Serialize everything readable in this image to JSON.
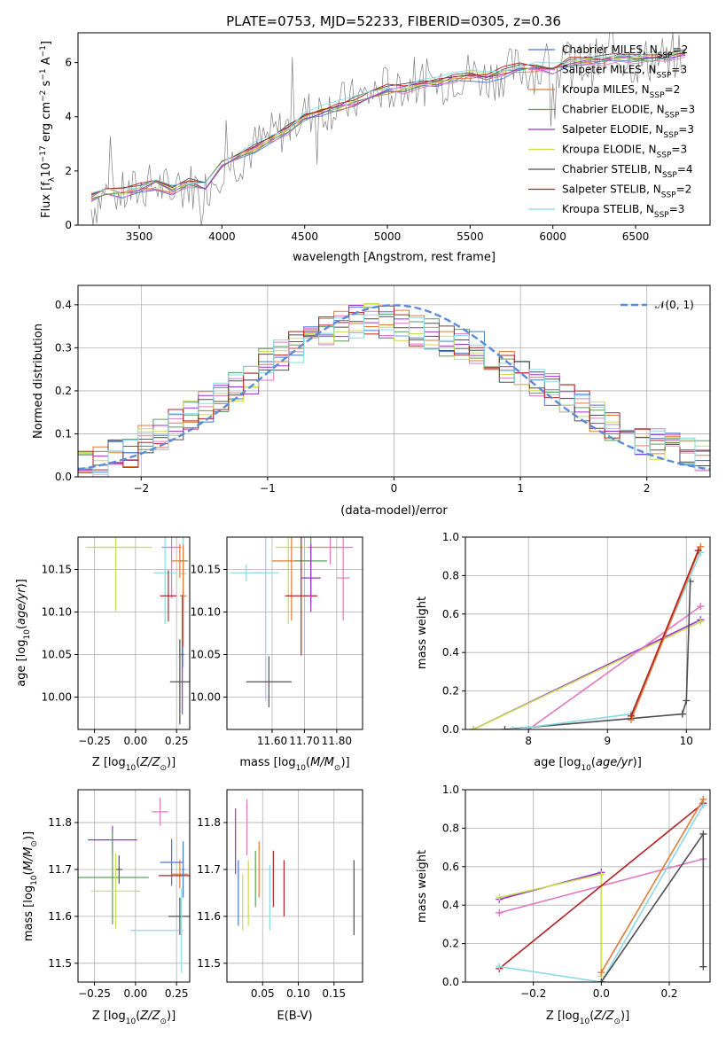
{
  "figure": {
    "title": "PLATE=0753, MJD=52233, FIBERID=0305, z=0.36"
  },
  "chart_data": [
    {
      "id": "spectrum",
      "type": "line",
      "xlabel": "wavelength [Angstrom, rest frame]",
      "ylabel": "Flux [f_λ 10^-17 erg cm^-2 s^-1 A^-1]",
      "xlim": [
        3130,
        6950
      ],
      "ylim": [
        0,
        7.1
      ],
      "xticks": [
        3500,
        4000,
        4500,
        5000,
        5500,
        6000,
        6500
      ],
      "yticks": [
        0,
        2,
        4,
        6
      ],
      "grid": false,
      "legend": "upper right",
      "data_series": {
        "name": "",
        "color": "#808080",
        "x": [
          3210,
          3300,
          3400,
          3500,
          3600,
          3700,
          3800,
          3900,
          4000,
          4100,
          4200,
          4300,
          4400,
          4500,
          4600,
          4700,
          4800,
          4900,
          5000,
          5100,
          5200,
          5300,
          5400,
          5500,
          5600,
          5700,
          5800,
          5900,
          6000,
          6100,
          6200,
          6300,
          6400,
          6500,
          6600,
          6700,
          6800
        ],
        "y": [
          0.6,
          1.2,
          1.1,
          1.3,
          1.5,
          1.2,
          1.5,
          1.3,
          2.2,
          2.4,
          2.9,
          3.3,
          3.6,
          4.1,
          4.3,
          4.4,
          4.6,
          4.8,
          5.1,
          5.0,
          5.3,
          5.2,
          5.5,
          5.6,
          5.4,
          5.6,
          5.8,
          5.7,
          5.6,
          6.0,
          5.9,
          6.1,
          6.2,
          6.0,
          6.1,
          6.2,
          6.3
        ]
      },
      "model_x": [
        3210,
        3300,
        3400,
        3500,
        3600,
        3700,
        3800,
        3900,
        4000,
        4100,
        4200,
        4300,
        4400,
        4500,
        4600,
        4700,
        4800,
        4900,
        5000,
        5100,
        5200,
        5300,
        5400,
        5500,
        5600,
        5700,
        5800,
        5900,
        6000,
        6100,
        6200,
        6300,
        6400,
        6500,
        6600,
        6700,
        6800
      ],
      "model_y": [
        1.0,
        1.25,
        1.2,
        1.35,
        1.5,
        1.35,
        1.55,
        1.45,
        2.25,
        2.45,
        2.85,
        3.25,
        3.55,
        4.0,
        4.2,
        4.35,
        4.55,
        4.8,
        5.0,
        5.05,
        5.2,
        5.25,
        5.45,
        5.55,
        5.5,
        5.65,
        5.8,
        5.8,
        5.75,
        6.0,
        6.0,
        6.1,
        6.2,
        6.15,
        6.2,
        6.25,
        6.35
      ],
      "series": [
        {
          "name": "Chabrier MILES, N_SSP=2",
          "label_main": "Chabrier MILES, N",
          "label_sub": "SSP",
          "label_tail": "=2",
          "color": "#4878d0"
        },
        {
          "name": "Salpeter MILES, N_SSP=3",
          "label_main": "Salpeter MILES, N",
          "label_sub": "SSP",
          "label_tail": "=3",
          "color": "#e377c2"
        },
        {
          "name": "Kroupa MILES, N_SSP=2",
          "label_main": "Kroupa MILES, N",
          "label_sub": "SSP",
          "label_tail": "=2",
          "color": "#e07b39"
        },
        {
          "name": "Chabrier ELODIE, N_SSP=3",
          "label_main": "Chabrier ELODIE, N",
          "label_sub": "SSP",
          "label_tail": "=3",
          "color": "#5a9e5a"
        },
        {
          "name": "Salpeter ELODIE, N_SSP=3",
          "label_main": "Salpeter ELODIE, N",
          "label_sub": "SSP",
          "label_tail": "=3",
          "color": "#9b30d0"
        },
        {
          "name": "Kroupa ELODIE, N_SSP=3",
          "label_main": "Kroupa ELODIE, N",
          "label_sub": "SSP",
          "label_tail": "=3",
          "color": "#c8dc50"
        },
        {
          "name": "Chabrier STELIB, N_SSP=4",
          "label_main": "Chabrier STELIB, N",
          "label_sub": "SSP",
          "label_tail": "=4",
          "color": "#505050"
        },
        {
          "name": "Salpeter STELIB, N_SSP=2",
          "label_main": "Salpeter STELIB, N",
          "label_sub": "SSP",
          "label_tail": "=2",
          "color": "#b22222"
        },
        {
          "name": "Kroupa STELIB, N_SSP=3",
          "label_main": "Kroupa STELIB, N",
          "label_sub": "SSP",
          "label_tail": "=3",
          "color": "#8ad8e8"
        }
      ]
    },
    {
      "id": "residuals",
      "type": "line",
      "xlabel": "(data-model)/error",
      "ylabel": "Normed distribution",
      "xlim": [
        -2.5,
        2.5
      ],
      "ylim": [
        0,
        0.445
      ],
      "xticks": [
        -2,
        -1,
        0,
        1,
        2
      ],
      "yticks": [
        0.0,
        0.1,
        0.2,
        0.3,
        0.4
      ],
      "grid": true,
      "legend": "upper right",
      "normal_label": "N(0,1)",
      "normal_color": "#5b8bd8",
      "base_hist": [
        0.03,
        0.04,
        0.05,
        0.06,
        0.08,
        0.1,
        0.12,
        0.14,
        0.16,
        0.19,
        0.21,
        0.23,
        0.26,
        0.28,
        0.3,
        0.32,
        0.34,
        0.35,
        0.36,
        0.37,
        0.36,
        0.35,
        0.34,
        0.33,
        0.32,
        0.31,
        0.3,
        0.28,
        0.26,
        0.24,
        0.22,
        0.2,
        0.18,
        0.16,
        0.14,
        0.12,
        0.1,
        0.09,
        0.08,
        0.07,
        0.06,
        0.05
      ]
    },
    {
      "id": "age-z",
      "type": "scatter",
      "xlabel": "Z [log10(Z/Z_sun)]",
      "ylabel": "age [log10(age/yr)]",
      "xlim": [
        -0.35,
        0.33
      ],
      "ylim": [
        9.962,
        10.188
      ],
      "xticks": [
        -0.25,
        0.0,
        0.25
      ],
      "yticks": [
        10.0,
        10.05,
        10.1,
        10.15
      ],
      "grid": true
    },
    {
      "id": "age-mass",
      "type": "scatter",
      "xlabel": "mass [log10(M/M_sun)]",
      "xlim": [
        11.46,
        11.88
      ],
      "ylim": [
        9.962,
        10.188
      ],
      "xticks": [
        11.6,
        11.7,
        11.8
      ],
      "yticks": [
        10.0,
        10.05,
        10.1,
        10.15
      ],
      "grid": true
    },
    {
      "id": "weight-age",
      "type": "line",
      "xlabel": "age [log10(age/yr)]",
      "ylabel": "mass weight",
      "xlim": [
        7.2,
        10.3
      ],
      "ylim": [
        0,
        1.0
      ],
      "xticks": [
        8,
        9,
        10
      ],
      "yticks": [
        0.0,
        0.2,
        0.4,
        0.6,
        0.8,
        1.0
      ],
      "grid": true,
      "lines": [
        {
          "color": "#9b30d0",
          "x": [
            7.3,
            10.18
          ],
          "y": [
            0.0,
            0.57
          ]
        },
        {
          "color": "#c8dc50",
          "x": [
            7.3,
            10.18
          ],
          "y": [
            0.0,
            0.56
          ]
        },
        {
          "color": "#e377c2",
          "x": [
            8.0,
            10.18
          ],
          "y": [
            0.0,
            0.64
          ]
        },
        {
          "color": "#505050",
          "x": [
            7.7,
            9.95,
            10.0,
            10.05
          ],
          "y": [
            0.0,
            0.08,
            0.15,
            0.77
          ]
        },
        {
          "color": "#8ad8e8",
          "x": [
            7.8,
            9.3,
            10.18
          ],
          "y": [
            0.0,
            0.08,
            0.92
          ]
        },
        {
          "color": "#e07b39",
          "x": [
            9.3,
            10.18
          ],
          "y": [
            0.05,
            0.95
          ]
        },
        {
          "color": "#b22222",
          "x": [
            9.3,
            10.15
          ],
          "y": [
            0.07,
            0.93
          ]
        }
      ]
    },
    {
      "id": "mass-z",
      "type": "scatter",
      "xlabel": "Z [log10(Z/Z_sun)]",
      "ylabel": "mass [log10(M/M_sun)]",
      "xlim": [
        -0.35,
        0.33
      ],
      "ylim": [
        11.46,
        11.87
      ],
      "xticks": [
        -0.25,
        0.0,
        0.25
      ],
      "yticks": [
        11.5,
        11.6,
        11.7,
        11.8
      ],
      "grid": true
    },
    {
      "id": "mass-ebv",
      "type": "scatter",
      "xlabel": "E(B-V)",
      "xlim": [
        0.0,
        0.19
      ],
      "ylim": [
        11.46,
        11.87
      ],
      "xticks": [
        0.05,
        0.1,
        0.15
      ],
      "yticks": [
        11.5,
        11.6,
        11.7,
        11.8
      ],
      "grid": true
    },
    {
      "id": "weight-z",
      "type": "line",
      "xlabel": "Z [log10(Z/Z_sun)]",
      "ylabel": "mass weight",
      "xlim": [
        -0.4,
        0.32
      ],
      "ylim": [
        0,
        1.0
      ],
      "xticks": [
        -0.2,
        0.0,
        0.2
      ],
      "yticks": [
        0.0,
        0.2,
        0.4,
        0.6,
        0.8,
        1.0
      ],
      "grid": true,
      "lines": [
        {
          "color": "#9b30d0",
          "x": [
            -0.3,
            0.0
          ],
          "y": [
            0.43,
            0.57
          ]
        },
        {
          "color": "#c8dc50",
          "x": [
            -0.3,
            0.0,
            0.0
          ],
          "y": [
            0.44,
            0.56,
            0.03
          ]
        },
        {
          "color": "#e377c2",
          "x": [
            -0.3,
            0.3
          ],
          "y": [
            0.36,
            0.64
          ]
        },
        {
          "color": "#b22222",
          "x": [
            -0.3,
            0.3
          ],
          "y": [
            0.07,
            0.93
          ]
        },
        {
          "color": "#8ad8e8",
          "x": [
            -0.3,
            0.0,
            0.3
          ],
          "y": [
            0.08,
            0.0,
            0.92
          ]
        },
        {
          "color": "#e07b39",
          "x": [
            0.0,
            0.3
          ],
          "y": [
            0.05,
            0.95
          ]
        },
        {
          "color": "#505050",
          "x": [
            0.0,
            0.3,
            0.3
          ],
          "y": [
            0.0,
            0.77,
            0.08
          ]
        }
      ]
    }
  ]
}
